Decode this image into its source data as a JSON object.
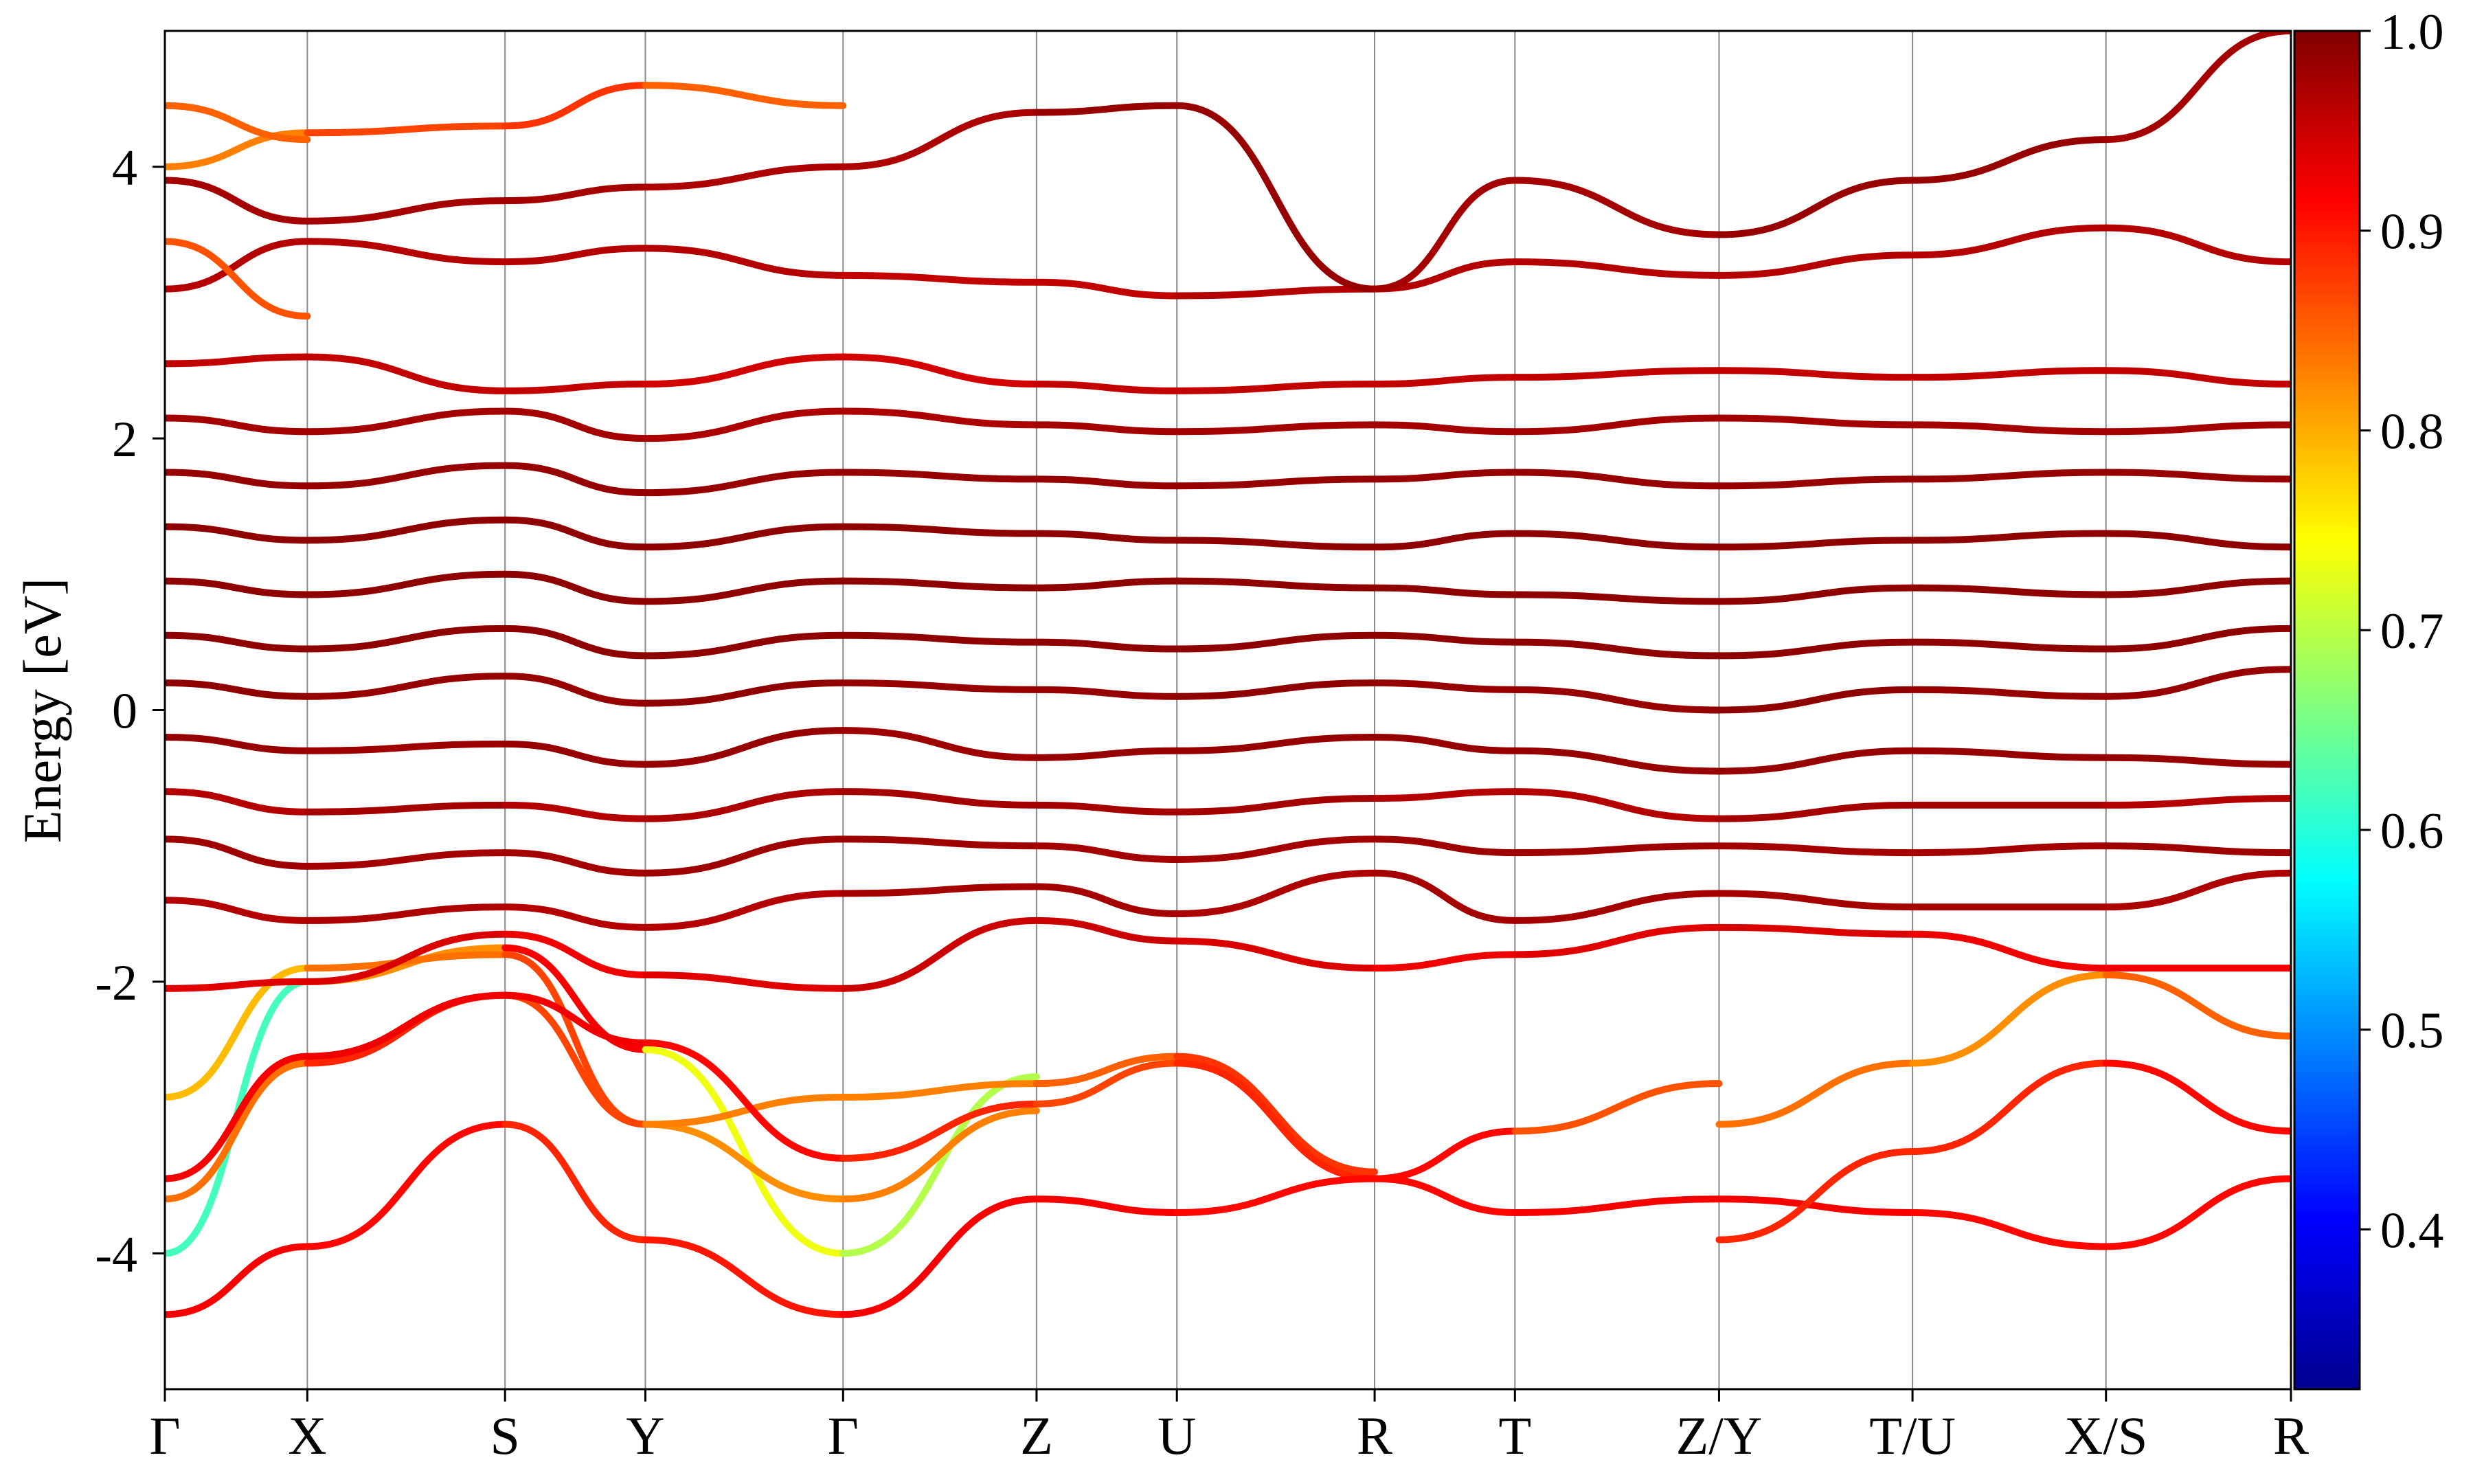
{
  "chart_data": {
    "type": "line",
    "title": "",
    "xlabel": "",
    "ylabel": "Energy [eV]",
    "ylim": [
      -5,
      5
    ],
    "y_ticks": [
      -4,
      -2,
      0,
      2,
      4
    ],
    "y_tick_labels": [
      "-4",
      "-2",
      "0",
      "2",
      "4"
    ],
    "k_path": {
      "labels": [
        "Γ",
        "X",
        "S",
        "Y",
        "Γ",
        "Z",
        "U",
        "R",
        "T",
        "Z/Y",
        "T/U",
        "X/S",
        "R"
      ],
      "positions": [
        0,
        0.067,
        0.16,
        0.226,
        0.319,
        0.41,
        0.476,
        0.569,
        0.635,
        0.731,
        0.822,
        0.913,
        1.0
      ]
    },
    "grid": "vertical lines at high-symmetry points",
    "line_color_default": "#b0150f",
    "colorbar": {
      "min": 0.32,
      "max": 1.0,
      "ticks": [
        0.4,
        0.5,
        0.6,
        0.7,
        0.8,
        0.9,
        1.0
      ],
      "tick_labels": [
        "0.4",
        "0.5",
        "0.6",
        "0.7",
        "0.8",
        "0.9",
        "1.0"
      ],
      "colormap": "jet"
    },
    "series": [
      {
        "x": [
          0,
          0.067,
          0.16,
          0.226,
          0.319,
          0.41
        ],
        "y": [
          -4.45,
          -3.95,
          -3.05,
          -3.9,
          -4.45,
          -3.6
        ],
        "weight": [
          0.92,
          0.92,
          0.9,
          0.88,
          0.92,
          0.92
        ]
      },
      {
        "x": [
          0,
          0.067,
          0.16,
          0.226,
          0.319,
          0.41
        ],
        "y": [
          -4.0,
          -2.0,
          -1.75,
          -2.5,
          -4.0,
          -2.7
        ],
        "weight": [
          0.52,
          0.72,
          0.92,
          0.92,
          0.55,
          0.84
        ]
      },
      {
        "x": [
          0,
          0.067,
          0.16,
          0.226,
          0.319,
          0.41
        ],
        "y": [
          -3.6,
          -2.6,
          -2.1,
          -3.05,
          -3.6,
          -2.95
        ],
        "weight": [
          0.8,
          0.88,
          0.9,
          0.84,
          0.8,
          0.86
        ]
      },
      {
        "x": [
          0,
          0.067,
          0.16,
          0.226,
          0.319,
          0.41,
          0.476,
          0.569
        ],
        "y": [
          -2.85,
          -1.9,
          -1.8,
          -3.05,
          -2.85,
          -2.75,
          -2.55,
          -3.4
        ],
        "weight": [
          0.8,
          0.78,
          0.9,
          0.84,
          0.82,
          0.84,
          0.86,
          0.9
        ]
      },
      {
        "x": [
          0,
          0.067,
          0.16,
          0.226,
          0.319,
          0.41,
          0.476,
          0.569,
          0.635,
          0.731
        ],
        "y": [
          -3.45,
          -2.55,
          -2.1,
          -2.45,
          -3.3,
          -2.9,
          -2.6,
          -3.45,
          -3.1,
          -2.75
        ],
        "weight": [
          0.92,
          0.92,
          0.93,
          0.92,
          0.9,
          0.88,
          0.86,
          0.92,
          0.9,
          0.82
        ]
      },
      {
        "x": [
          0.41,
          0.476,
          0.569,
          0.635,
          0.731,
          0.822,
          0.913,
          1.0
        ],
        "y": [
          -3.6,
          -3.7,
          -3.45,
          -3.7,
          -3.6,
          -3.7,
          -3.95,
          -3.45
        ],
        "weight": [
          0.92,
          0.92,
          0.9,
          0.92,
          0.92,
          0.92,
          0.9,
          0.92
        ]
      },
      {
        "x": [
          0.731,
          0.822,
          0.913,
          1.0
        ],
        "y": [
          -3.9,
          -3.25,
          -2.6,
          -3.1
        ],
        "weight": [
          0.9,
          0.88,
          0.9,
          0.92
        ]
      },
      {
        "x": [
          0.731,
          0.822,
          0.913,
          1.0
        ],
        "y": [
          -3.05,
          -2.6,
          -1.95,
          -2.4
        ],
        "weight": [
          0.82,
          0.86,
          0.78,
          0.92
        ]
      },
      {
        "x": [
          0,
          0.067,
          0.16,
          0.226,
          0.319,
          0.41,
          0.476,
          0.569,
          0.635,
          0.731,
          0.822,
          0.913,
          1.0
        ],
        "y": [
          -2.05,
          -2.0,
          -1.65,
          -1.95,
          -2.05,
          -1.55,
          -1.7,
          -1.9,
          -1.8,
          -1.6,
          -1.65,
          -1.9,
          -1.9
        ],
        "weight": [
          0.92,
          0.95,
          0.93,
          0.92,
          0.95,
          0.95,
          0.95,
          0.93,
          0.92,
          0.95,
          0.93,
          0.92,
          0.93
        ]
      },
      {
        "x": [
          0,
          0.067,
          0.16,
          0.226,
          0.319,
          0.41,
          0.476,
          0.569,
          0.635,
          0.731,
          0.822,
          0.913,
          1.0
        ],
        "y": [
          -1.4,
          -1.55,
          -1.45,
          -1.6,
          -1.35,
          -1.3,
          -1.5,
          -1.2,
          -1.55,
          -1.35,
          -1.45,
          -1.45,
          -1.2
        ],
        "weight": [
          0.96,
          0.97,
          0.97,
          0.96,
          0.97,
          0.98,
          0.97,
          0.97,
          0.98,
          0.97,
          0.98,
          0.97,
          0.97
        ]
      },
      {
        "x": [
          0,
          0.067,
          0.16,
          0.226,
          0.319,
          0.41,
          0.476,
          0.569,
          0.635,
          0.731,
          0.822,
          0.913,
          1.0
        ],
        "y": [
          -0.95,
          -1.15,
          -1.05,
          -1.2,
          -0.95,
          -1.0,
          -1.1,
          -0.95,
          -1.05,
          -1.0,
          -1.05,
          -1.0,
          -1.05
        ],
        "weight": [
          0.98,
          0.98,
          0.97,
          0.98,
          0.98,
          0.98,
          0.97,
          0.98,
          0.98,
          0.98,
          0.97,
          0.98,
          0.98
        ]
      },
      {
        "x": [
          0,
          0.067,
          0.16,
          0.226,
          0.319,
          0.41,
          0.476,
          0.569,
          0.635,
          0.731,
          0.822,
          0.913,
          1.0
        ],
        "y": [
          -0.6,
          -0.75,
          -0.7,
          -0.8,
          -0.6,
          -0.7,
          -0.75,
          -0.65,
          -0.6,
          -0.8,
          -0.7,
          -0.7,
          -0.65
        ],
        "weight": [
          0.95,
          0.98,
          0.97,
          0.96,
          0.98,
          0.97,
          0.98,
          0.97,
          0.96,
          0.97,
          0.98,
          0.97,
          0.96
        ]
      },
      {
        "x": [
          0,
          0.067,
          0.16,
          0.226,
          0.319,
          0.41,
          0.476,
          0.569,
          0.635,
          0.731,
          0.822,
          0.913,
          1.0
        ],
        "y": [
          -0.2,
          -0.3,
          -0.25,
          -0.4,
          -0.15,
          -0.35,
          -0.3,
          -0.2,
          -0.3,
          -0.45,
          -0.3,
          -0.35,
          -0.4
        ],
        "weight": [
          0.99,
          0.98,
          0.98,
          0.99,
          0.98,
          0.98,
          0.99,
          0.98,
          0.99,
          0.98,
          0.99,
          0.98,
          0.99
        ]
      },
      {
        "x": [
          0,
          0.067,
          0.16,
          0.226,
          0.319,
          0.41,
          0.476,
          0.569,
          0.635,
          0.731,
          0.822,
          0.913,
          1.0
        ],
        "y": [
          0.2,
          0.1,
          0.25,
          0.05,
          0.2,
          0.15,
          0.1,
          0.2,
          0.15,
          0.0,
          0.15,
          0.1,
          0.3
        ],
        "weight": [
          0.99,
          0.99,
          0.98,
          0.99,
          0.99,
          0.98,
          0.99,
          0.99,
          0.98,
          0.99,
          0.99,
          0.98,
          0.99
        ]
      },
      {
        "x": [
          0,
          0.067,
          0.16,
          0.226,
          0.319,
          0.41,
          0.476,
          0.569,
          0.635,
          0.731,
          0.822,
          0.913,
          1.0
        ],
        "y": [
          0.55,
          0.45,
          0.6,
          0.4,
          0.55,
          0.5,
          0.45,
          0.55,
          0.5,
          0.4,
          0.5,
          0.45,
          0.6
        ],
        "weight": [
          0.99,
          0.99,
          0.99,
          0.99,
          0.99,
          0.99,
          0.99,
          0.99,
          0.99,
          0.99,
          0.99,
          0.99,
          0.99
        ]
      },
      {
        "x": [
          0,
          0.067,
          0.16,
          0.226,
          0.319,
          0.41,
          0.476,
          0.569,
          0.635,
          0.731,
          0.822,
          0.913,
          1.0
        ],
        "y": [
          0.95,
          0.85,
          1.0,
          0.8,
          0.95,
          0.9,
          0.95,
          0.9,
          0.85,
          0.8,
          0.9,
          0.85,
          0.95
        ],
        "weight": [
          0.99,
          0.99,
          0.99,
          0.99,
          0.99,
          0.99,
          0.99,
          0.99,
          0.99,
          0.99,
          0.99,
          0.99,
          0.99
        ]
      },
      {
        "x": [
          0,
          0.067,
          0.16,
          0.226,
          0.319,
          0.41,
          0.476,
          0.569,
          0.635,
          0.731,
          0.822,
          0.913,
          1.0
        ],
        "y": [
          1.35,
          1.25,
          1.4,
          1.2,
          1.35,
          1.3,
          1.25,
          1.2,
          1.3,
          1.2,
          1.25,
          1.3,
          1.2
        ],
        "weight": [
          0.99,
          0.99,
          0.99,
          0.99,
          0.99,
          0.99,
          0.99,
          0.99,
          0.99,
          0.99,
          0.99,
          0.99,
          0.99
        ]
      },
      {
        "x": [
          0,
          0.067,
          0.16,
          0.226,
          0.319,
          0.41,
          0.476,
          0.569,
          0.635,
          0.731,
          0.822,
          0.913,
          1.0
        ],
        "y": [
          1.75,
          1.65,
          1.8,
          1.6,
          1.75,
          1.7,
          1.65,
          1.7,
          1.75,
          1.65,
          1.7,
          1.75,
          1.7
        ],
        "weight": [
          0.98,
          0.99,
          0.98,
          0.99,
          0.98,
          0.99,
          0.98,
          0.99,
          0.98,
          0.99,
          0.98,
          0.99,
          0.98
        ]
      },
      {
        "x": [
          0,
          0.067,
          0.16,
          0.226,
          0.319,
          0.41,
          0.476,
          0.569,
          0.635,
          0.731,
          0.822,
          0.913,
          1.0
        ],
        "y": [
          2.15,
          2.05,
          2.2,
          2.0,
          2.2,
          2.1,
          2.05,
          2.1,
          2.05,
          2.15,
          2.1,
          2.05,
          2.1
        ],
        "weight": [
          0.97,
          0.98,
          0.97,
          0.98,
          0.96,
          0.98,
          0.97,
          0.98,
          0.97,
          0.98,
          0.97,
          0.98,
          0.97
        ]
      },
      {
        "x": [
          0,
          0.067,
          0.16,
          0.226,
          0.319,
          0.41,
          0.476,
          0.569,
          0.635,
          0.731,
          0.822,
          0.913,
          1.0
        ],
        "y": [
          2.55,
          2.6,
          2.35,
          2.4,
          2.6,
          2.4,
          2.35,
          2.4,
          2.45,
          2.5,
          2.45,
          2.5,
          2.4
        ],
        "weight": [
          0.95,
          0.96,
          0.95,
          0.96,
          0.93,
          0.96,
          0.95,
          0.96,
          0.95,
          0.96,
          0.95,
          0.96,
          0.95
        ]
      },
      {
        "x": [
          0,
          0.067,
          0.16,
          0.226,
          0.319,
          0.41,
          0.476,
          0.569,
          0.635,
          0.731,
          0.822,
          0.913,
          1.0
        ],
        "y": [
          3.1,
          3.45,
          3.3,
          3.4,
          3.2,
          3.15,
          3.05,
          3.1,
          3.3,
          3.2,
          3.35,
          3.55,
          3.3
        ],
        "weight": [
          0.96,
          0.97,
          0.96,
          0.97,
          0.96,
          0.95,
          0.96,
          0.97,
          0.96,
          0.97,
          0.96,
          0.97,
          0.96
        ]
      },
      {
        "x": [
          0,
          0.067,
          0.16,
          0.226,
          0.319
        ],
        "y": [
          4.0,
          4.25,
          4.3,
          4.6,
          4.45
        ],
        "weight": [
          0.82,
          0.84,
          0.9,
          0.86,
          0.84
        ]
      },
      {
        "x": [
          0,
          0.067,
          0.16,
          0.226,
          0.319,
          0.41,
          0.476,
          0.569,
          0.635,
          0.731,
          0.822,
          0.913,
          1.0
        ],
        "y": [
          3.9,
          3.6,
          3.75,
          3.85,
          4.0,
          4.4,
          4.45,
          3.1,
          3.9,
          3.5,
          3.9,
          4.2,
          5.0
        ],
        "weight": [
          0.97,
          0.98,
          0.97,
          0.98,
          0.96,
          0.98,
          0.99,
          0.98,
          0.97,
          0.98,
          0.99,
          0.98,
          0.97
        ]
      },
      {
        "x": [
          0,
          0.067
        ],
        "y": [
          3.45,
          2.9
        ],
        "weight": [
          0.86,
          0.86
        ]
      },
      {
        "x": [
          0,
          0.067
        ],
        "y": [
          4.45,
          4.2
        ],
        "weight": [
          0.84,
          0.86
        ]
      }
    ]
  }
}
